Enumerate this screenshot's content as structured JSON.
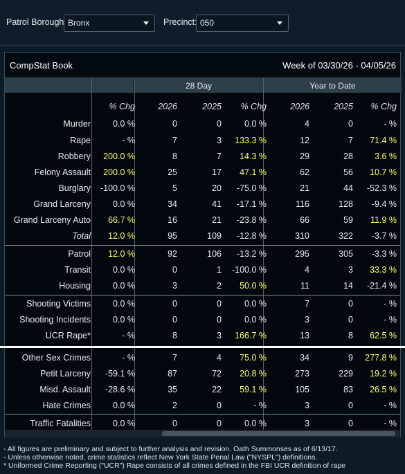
{
  "filters": {
    "borough_label": "Patrol Borough:",
    "borough_value": "Bronx",
    "precinct_label": "Precinct:",
    "precinct_value": "050"
  },
  "panel": {
    "title": "CompStat Book",
    "week": "Week of 03/30/26 - 04/05/26",
    "band_28day": "28 Day",
    "band_ytd": "Year to Date"
  },
  "columns": [
    "% Chg",
    "2026",
    "2025",
    "% Chg",
    "2026",
    "2025",
    "% Chg"
  ],
  "rows": [
    {
      "label": "Murder",
      "v": [
        "0.0 %",
        "0",
        "0",
        "0.0 %",
        "4",
        "0",
        "- %"
      ],
      "hl": []
    },
    {
      "label": "Rape",
      "v": [
        "- %",
        "7",
        "3",
        "133.3 %",
        "12",
        "7",
        "71.4 %"
      ],
      "hl": [
        3,
        6
      ]
    },
    {
      "label": "Robbery",
      "v": [
        "200.0 %",
        "8",
        "7",
        "14.3 %",
        "29",
        "28",
        "3.6 %"
      ],
      "hl": [
        0,
        3,
        6
      ]
    },
    {
      "label": "Felony Assault",
      "v": [
        "200.0 %",
        "25",
        "17",
        "47.1 %",
        "62",
        "56",
        "10.7 %"
      ],
      "hl": [
        0,
        3,
        6
      ]
    },
    {
      "label": "Burglary",
      "v": [
        "-100.0 %",
        "5",
        "20",
        "-75.0 %",
        "21",
        "44",
        "-52.3 %"
      ],
      "hl": []
    },
    {
      "label": "Grand Larceny",
      "v": [
        "0.0 %",
        "34",
        "41",
        "-17.1 %",
        "116",
        "128",
        "-9.4 %"
      ],
      "hl": []
    },
    {
      "label": "Grand Larceny Auto",
      "v": [
        "66.7 %",
        "16",
        "21",
        "-23.8 %",
        "66",
        "59",
        "11.9 %"
      ],
      "hl": [
        0,
        6
      ]
    },
    {
      "label": "Total",
      "v": [
        "12.0 %",
        "95",
        "109",
        "-12.8 %",
        "310",
        "322",
        "-3.7 %"
      ],
      "hl": [
        0
      ]
    },
    {
      "label": "Patrol",
      "v": [
        "12.0 %",
        "92",
        "106",
        "-13.2 %",
        "295",
        "305",
        "-3.3 %"
      ],
      "hl": [
        0
      ]
    },
    {
      "label": "Transit",
      "v": [
        "0.0 %",
        "0",
        "1",
        "-100.0 %",
        "4",
        "3",
        "33.3 %"
      ],
      "hl": [
        6
      ]
    },
    {
      "label": "Housing",
      "v": [
        "0.0 %",
        "3",
        "2",
        "50.0 %",
        "11",
        "14",
        "-21.4 %"
      ],
      "hl": [
        3
      ]
    },
    {
      "label": "Shooting Victims",
      "v": [
        "0.0 %",
        "0",
        "0",
        "0.0 %",
        "7",
        "0",
        "- %"
      ],
      "hl": []
    },
    {
      "label": "Shooting Incidents",
      "v": [
        "0.0 %",
        "0",
        "0",
        "0.0 %",
        "3",
        "0",
        "- %"
      ],
      "hl": []
    },
    {
      "label": "UCR Rape*",
      "v": [
        "- %",
        "8",
        "3",
        "166.7 %",
        "13",
        "8",
        "62.5 %"
      ],
      "hl": [
        3,
        6
      ]
    },
    {
      "label": "Other Sex Crimes",
      "v": [
        "- %",
        "7",
        "4",
        "75.0 %",
        "34",
        "9",
        "277.8 %"
      ],
      "hl": [
        3,
        6
      ]
    },
    {
      "label": "Petit Larceny",
      "v": [
        "-59.1 %",
        "87",
        "72",
        "20.8 %",
        "273",
        "229",
        "19.2 %"
      ],
      "hl": [
        3,
        6
      ]
    },
    {
      "label": "Misd. Assault",
      "v": [
        "-28.6 %",
        "35",
        "22",
        "59.1 %",
        "105",
        "83",
        "26.5 %"
      ],
      "hl": [
        3,
        6
      ]
    },
    {
      "label": "Hate Crimes",
      "v": [
        "0.0 %",
        "2",
        "0",
        "- %",
        "3",
        "0",
        "- %"
      ],
      "hl": []
    },
    {
      "label": "Traffic Fatalities",
      "v": [
        "0.0 %",
        "0",
        "0",
        "0.0 %",
        "3",
        "0",
        "- %"
      ],
      "hl": []
    }
  ],
  "colors": {
    "highlight": "#ffff66",
    "panel_bg": "#02080d",
    "band_bg": "#2f3f4a"
  },
  "notes": [
    "- All figures are preliminary and subject to further analysis and revision. Oath Summonses as of 6/13/17.",
    "- Unless otherwise noted, crime statistics reflect New York State Penal Law (\"NYSPL\") definitions.",
    "* Uniformed Crime Reporting (\"UCR\") Rape consists of all crimes defined in the FBI UCR definition of rape"
  ]
}
